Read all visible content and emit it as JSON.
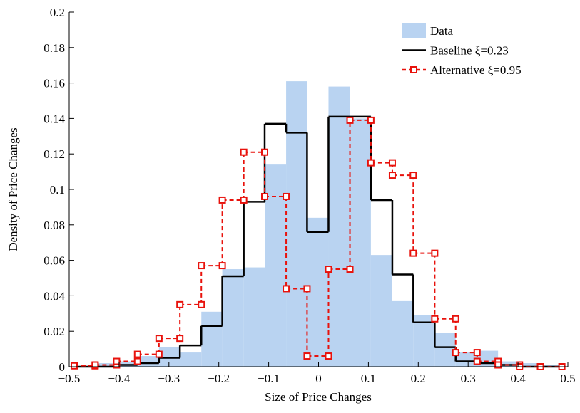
{
  "chart_data": {
    "type": "histogram",
    "xlabel": "Size of Price Changes",
    "ylabel": "Density of Price Changes",
    "bins": [
      -0.49,
      -0.448,
      -0.405,
      -0.363,
      -0.32,
      -0.278,
      -0.235,
      -0.193,
      -0.15,
      -0.108,
      -0.065,
      -0.023,
      0.02,
      0.063,
      0.105,
      0.148,
      0.19,
      0.233,
      0.275,
      0.318,
      0.36,
      0.403,
      0.445,
      0.488
    ],
    "series": [
      {
        "name": "Data",
        "style": "bar",
        "color": "#b9d3f1",
        "values": [
          0,
          0.002,
          0.003,
          0.006,
          0.011,
          0.008,
          0.031,
          0.055,
          0.056,
          0.114,
          0.161,
          0.084,
          0.158,
          0.14,
          0.063,
          0.037,
          0.029,
          0.019,
          0.008,
          0.009,
          0.003,
          0.002,
          0.001
        ]
      },
      {
        "name": "Baseline ξ=0.23",
        "style": "step",
        "color": "#000000",
        "values": [
          0,
          0,
          0.001,
          0.002,
          0.005,
          0.012,
          0.023,
          0.051,
          0.093,
          0.137,
          0.132,
          0.076,
          0.141,
          0.141,
          0.094,
          0.052,
          0.025,
          0.011,
          0.003,
          0.002,
          0.001,
          0,
          0
        ]
      },
      {
        "name": "Alternative ξ=0.95",
        "style": "dashed-step-marker",
        "color": "#e8120c",
        "values": [
          0.0005,
          0.001,
          0.003,
          0.007,
          0.016,
          0.035,
          0.057,
          0.094,
          0.121,
          0.096,
          0.044,
          0.006,
          0.055,
          0.139,
          0.115,
          0.108,
          0.064,
          0.027,
          0.008,
          0.003,
          0.001,
          0,
          0
        ]
      }
    ],
    "xlim": [
      -0.5,
      0.5
    ],
    "xticks": [
      {
        "value": -0.5,
        "label": "−0.5"
      },
      {
        "value": -0.4,
        "label": "−0.4"
      },
      {
        "value": -0.3,
        "label": "−0.3"
      },
      {
        "value": -0.2,
        "label": "−0.2"
      },
      {
        "value": -0.1,
        "label": "−0.1"
      },
      0,
      0.1,
      0.2,
      0.3,
      0.4,
      0.5
    ],
    "ylim": [
      0,
      0.2
    ],
    "yticks": [
      0,
      0.02,
      0.04,
      0.06,
      0.08,
      0.1,
      0.12,
      0.14,
      0.16,
      0.18,
      0.2
    ],
    "legend": "upper right"
  }
}
